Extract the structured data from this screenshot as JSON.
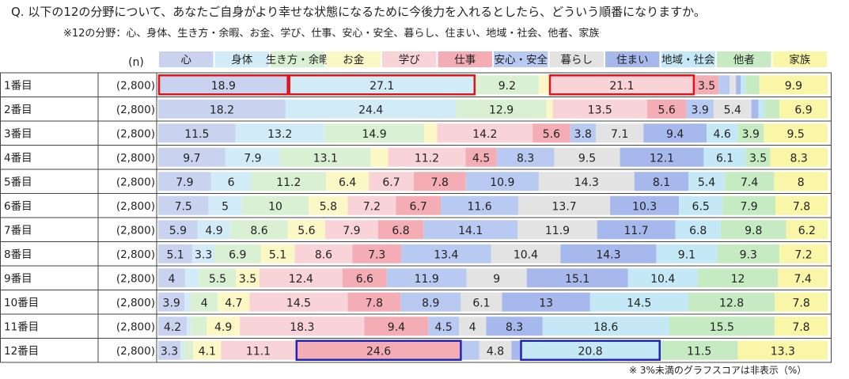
{
  "title": "Q. 以下の12の分野について、あなたご自身がより幸せな状態になるために今後力を入れるとしたら、どういう順番になりますか。",
  "note": "※12の分野：心、身体、生き方・余暇、お金、学び、仕事、安心・安全、暮らし、住まい、地域・社会、他者、家族",
  "footnote": "※ 3%未満のグラフスコアは非表示（%）",
  "n_header": "(n)",
  "chart_data": {
    "type": "bar",
    "stacked": true,
    "orientation": "horizontal",
    "unit": "%",
    "hide_label_below": 3,
    "categories": [
      "1番目",
      "2番目",
      "3番目",
      "4番目",
      "5番目",
      "6番目",
      "7番目",
      "8番目",
      "9番目",
      "10番目",
      "11番目",
      "12番目"
    ],
    "n": [
      "(2,800)",
      "(2,800)",
      "(2,800)",
      "(2,800)",
      "(2,800)",
      "(2,800)",
      "(2,800)",
      "(2,800)",
      "(2,800)",
      "(2,800)",
      "(2,800)",
      "(2,800)"
    ],
    "series": [
      {
        "name": "心",
        "color": "#c9d3ef",
        "values": [
          18.9,
          18.2,
          11.5,
          9.7,
          7.9,
          7.5,
          5.9,
          5.1,
          4.0,
          3.9,
          4.2,
          3.3
        ]
      },
      {
        "name": "身体",
        "color": "#d2ecf7",
        "values": [
          27.1,
          24.4,
          13.2,
          7.9,
          6.0,
          5.0,
          4.9,
          3.3,
          2.1,
          0.9,
          0.6,
          0.5
        ]
      },
      {
        "name": "生き方・余暇",
        "color": "#d9f0d3",
        "values": [
          9.2,
          12.9,
          14.9,
          13.1,
          11.2,
          10.0,
          8.6,
          6.9,
          5.5,
          4.0,
          2.3,
          1.4
        ]
      },
      {
        "name": "お金",
        "color": "#fbf8c6",
        "values": [
          1.5,
          0.9,
          1.9,
          2.5,
          6.4,
          5.8,
          5.6,
          5.1,
          3.5,
          4.7,
          4.9,
          4.1
        ]
      },
      {
        "name": "学び",
        "color": "#f8d3d7",
        "values": [
          21.1,
          13.5,
          14.2,
          11.2,
          6.7,
          7.2,
          7.9,
          8.6,
          12.4,
          14.5,
          18.3,
          11.1
        ]
      },
      {
        "name": "仕事",
        "color": "#f4adb5",
        "values": [
          3.5,
          5.6,
          5.6,
          4.5,
          7.8,
          6.7,
          6.8,
          7.3,
          6.6,
          7.8,
          9.4,
          24.6
        ]
      },
      {
        "name": "安心・安全",
        "color": "#b8c9f2",
        "values": [
          1.6,
          3.9,
          3.8,
          8.3,
          10.9,
          11.6,
          14.1,
          13.4,
          11.9,
          8.9,
          4.5,
          2.6
        ]
      },
      {
        "name": "暮らし",
        "color": "#e3e3e3",
        "values": [
          0.9,
          5.4,
          7.1,
          9.5,
          14.3,
          13.7,
          11.9,
          10.4,
          9.0,
          6.1,
          4.0,
          4.8
        ]
      },
      {
        "name": "住まい",
        "color": "#a7b8ec",
        "values": [
          0.7,
          1.0,
          9.4,
          12.1,
          8.1,
          10.3,
          11.7,
          14.3,
          15.1,
          13.0,
          8.3,
          1.3
        ]
      },
      {
        "name": "地域・社会",
        "color": "#c4e8f6",
        "values": [
          0.7,
          0.9,
          4.6,
          6.1,
          5.4,
          6.5,
          6.8,
          9.1,
          10.4,
          14.5,
          18.6,
          20.8
        ]
      },
      {
        "name": "他者",
        "color": "#c6ebc2",
        "values": [
          2.0,
          2.1,
          3.9,
          3.5,
          7.4,
          7.9,
          9.8,
          9.3,
          12.0,
          12.8,
          15.5,
          11.5
        ]
      },
      {
        "name": "家族",
        "color": "#f9f6a8",
        "values": [
          9.9,
          6.9,
          9.5,
          8.3,
          8.0,
          7.8,
          6.2,
          7.2,
          7.4,
          7.8,
          7.8,
          13.3
        ]
      }
    ],
    "highlights": [
      {
        "row": 0,
        "from": 0,
        "to": 0,
        "color": "#e0151b"
      },
      {
        "row": 0,
        "from": 1,
        "to": 1,
        "color": "#e0151b"
      },
      {
        "row": 0,
        "from": 4,
        "to": 4,
        "color": "#e0151b"
      },
      {
        "row": 11,
        "from": 5,
        "to": 5,
        "color": "#1f25b8"
      },
      {
        "row": 11,
        "from": 9,
        "to": 9,
        "color": "#1f25b8"
      }
    ]
  }
}
